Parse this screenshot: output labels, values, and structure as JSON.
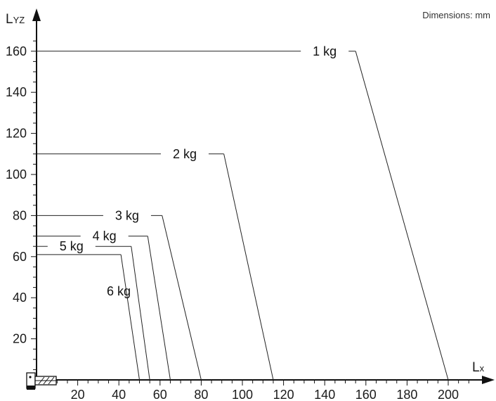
{
  "note": "Dimensions: mm",
  "chart_data": {
    "type": "line",
    "xlabel_main": "L",
    "xlabel_sub": "x",
    "ylabel_main": "L",
    "ylabel_sub": "YZ",
    "xlim": [
      0,
      210
    ],
    "ylim": [
      0,
      170
    ],
    "xticks": [
      20,
      40,
      60,
      80,
      100,
      120,
      140,
      160,
      180,
      200
    ],
    "yticks": [
      20,
      40,
      60,
      80,
      100,
      120,
      140,
      160
    ],
    "series": [
      {
        "name": "1 kg",
        "points": [
          [
            0,
            160
          ],
          [
            155,
            160
          ],
          [
            200,
            0
          ]
        ]
      },
      {
        "name": "2 kg",
        "points": [
          [
            0,
            110
          ],
          [
            91,
            110
          ],
          [
            115,
            0
          ]
        ]
      },
      {
        "name": "3 kg",
        "points": [
          [
            0,
            80
          ],
          [
            61,
            80
          ],
          [
            80,
            0
          ]
        ]
      },
      {
        "name": "4 kg",
        "points": [
          [
            0,
            70
          ],
          [
            54,
            70
          ],
          [
            65,
            0
          ]
        ]
      },
      {
        "name": "5 kg",
        "points": [
          [
            0,
            65
          ],
          [
            46,
            65
          ],
          [
            55,
            0
          ]
        ]
      },
      {
        "name": "6 kg",
        "points": [
          [
            0,
            61
          ],
          [
            41,
            61
          ],
          [
            50,
            0
          ]
        ]
      }
    ]
  }
}
